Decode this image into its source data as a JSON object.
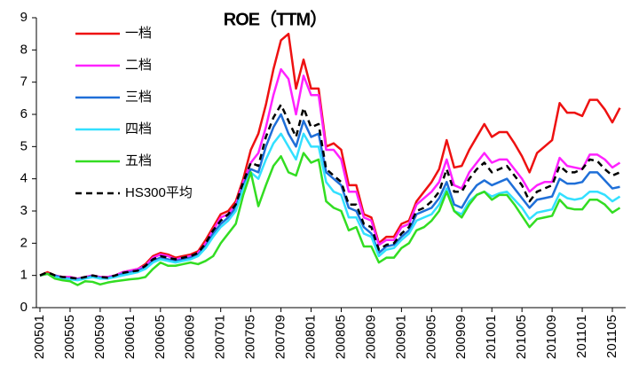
{
  "chart_data": {
    "type": "line",
    "title": "ROE（TTM）",
    "categories": [
      "200501",
      null,
      null,
      null,
      "200505",
      null,
      null,
      null,
      "200509",
      null,
      null,
      null,
      "200601",
      null,
      null,
      null,
      "200605",
      null,
      null,
      null,
      "200609",
      null,
      null,
      null,
      "200701",
      null,
      null,
      null,
      "200705",
      null,
      null,
      null,
      "200709",
      null,
      null,
      null,
      "200801",
      null,
      null,
      null,
      "200805",
      null,
      null,
      null,
      "200809",
      null,
      null,
      null,
      "200901",
      null,
      null,
      null,
      "200905",
      null,
      null,
      null,
      "200909",
      null,
      null,
      null,
      "201001",
      null,
      null,
      null,
      "201005",
      null,
      null,
      null,
      "201009",
      null,
      null,
      null,
      "201101",
      null,
      null,
      null,
      "201105",
      null
    ],
    "ylim": [
      0,
      9
    ],
    "yticks": [
      0,
      1,
      2,
      3,
      4,
      5,
      6,
      7,
      8,
      9
    ],
    "series": [
      {
        "name": "一档",
        "color": "#ee1111",
        "values": [
          1.0,
          1.1,
          1.0,
          0.95,
          0.95,
          0.9,
          0.95,
          1.0,
          0.95,
          0.95,
          1.0,
          1.1,
          1.15,
          1.2,
          1.35,
          1.6,
          1.7,
          1.65,
          1.55,
          1.6,
          1.65,
          1.75,
          2.1,
          2.5,
          2.9,
          3.0,
          3.3,
          4.0,
          4.9,
          5.4,
          6.3,
          7.4,
          8.3,
          8.5,
          6.8,
          7.7,
          6.8,
          6.8,
          5.0,
          5.1,
          4.9,
          3.8,
          3.8,
          2.9,
          2.8,
          2.0,
          2.2,
          2.2,
          2.6,
          2.7,
          3.3,
          3.6,
          3.9,
          4.3,
          5.2,
          4.35,
          4.4,
          4.9,
          5.3,
          5.7,
          5.3,
          5.45,
          5.45,
          5.1,
          4.7,
          4.2,
          4.8,
          5.0,
          5.2,
          6.35,
          6.05,
          6.05,
          5.95,
          6.45,
          6.45,
          6.15,
          5.75,
          6.2
        ]
      },
      {
        "name": "二档",
        "color": "#ff22ff",
        "values": [
          1.0,
          1.05,
          1.0,
          0.95,
          0.95,
          0.9,
          0.95,
          1.0,
          0.95,
          0.95,
          1.0,
          1.1,
          1.15,
          1.2,
          1.3,
          1.55,
          1.65,
          1.6,
          1.5,
          1.55,
          1.6,
          1.7,
          2.0,
          2.4,
          2.8,
          2.9,
          3.2,
          3.9,
          4.5,
          4.8,
          5.6,
          6.6,
          7.4,
          7.1,
          6.0,
          7.2,
          6.6,
          6.6,
          4.9,
          4.9,
          4.6,
          3.6,
          3.6,
          2.8,
          2.7,
          1.95,
          2.1,
          2.1,
          2.5,
          2.6,
          3.2,
          3.4,
          3.6,
          3.9,
          4.6,
          3.8,
          3.7,
          4.2,
          4.5,
          4.8,
          4.5,
          4.6,
          4.6,
          4.3,
          4.0,
          3.6,
          3.8,
          3.9,
          3.9,
          4.65,
          4.4,
          4.35,
          4.3,
          4.75,
          4.75,
          4.6,
          4.35,
          4.5
        ]
      },
      {
        "name": "三档",
        "color": "#1f6fd8",
        "values": [
          1.0,
          1.05,
          1.0,
          0.92,
          0.9,
          0.88,
          0.92,
          0.98,
          0.93,
          0.92,
          0.98,
          1.05,
          1.1,
          1.15,
          1.25,
          1.45,
          1.55,
          1.5,
          1.45,
          1.5,
          1.55,
          1.65,
          1.9,
          2.3,
          2.6,
          2.8,
          3.1,
          3.8,
          4.3,
          4.2,
          5.0,
          5.6,
          6.0,
          5.4,
          5.0,
          5.8,
          5.3,
          5.4,
          4.2,
          4.0,
          3.8,
          3.1,
          3.0,
          2.5,
          2.3,
          1.7,
          1.9,
          1.95,
          2.2,
          2.4,
          2.9,
          3.0,
          3.1,
          3.4,
          3.9,
          3.2,
          3.1,
          3.5,
          3.8,
          3.95,
          3.8,
          3.9,
          4.0,
          3.7,
          3.4,
          3.1,
          3.35,
          3.4,
          3.45,
          4.0,
          3.85,
          3.85,
          3.9,
          4.2,
          4.2,
          3.95,
          3.7,
          3.75
        ]
      },
      {
        "name": "四档",
        "color": "#33e0ff",
        "values": [
          1.0,
          1.05,
          0.95,
          0.9,
          0.88,
          0.85,
          0.9,
          0.95,
          0.9,
          0.9,
          0.95,
          1.0,
          1.05,
          1.1,
          1.2,
          1.4,
          1.5,
          1.45,
          1.4,
          1.45,
          1.5,
          1.6,
          1.85,
          2.2,
          2.5,
          2.7,
          3.0,
          3.7,
          4.2,
          4.0,
          4.6,
          5.1,
          5.4,
          5.0,
          4.6,
          5.4,
          5.0,
          5.0,
          3.9,
          3.6,
          3.5,
          2.8,
          2.8,
          2.3,
          2.2,
          1.6,
          1.8,
          1.85,
          2.1,
          2.3,
          2.7,
          2.8,
          2.9,
          3.2,
          3.7,
          3.0,
          2.9,
          3.3,
          3.5,
          3.6,
          3.45,
          3.55,
          3.6,
          3.35,
          3.1,
          2.75,
          2.95,
          3.0,
          3.05,
          3.55,
          3.4,
          3.35,
          3.4,
          3.6,
          3.6,
          3.5,
          3.3,
          3.45
        ]
      },
      {
        "name": "五档",
        "color": "#33dd22",
        "values": [
          1.0,
          1.05,
          0.9,
          0.85,
          0.82,
          0.7,
          0.82,
          0.8,
          0.72,
          0.78,
          0.82,
          0.85,
          0.88,
          0.9,
          0.95,
          1.2,
          1.4,
          1.3,
          1.3,
          1.35,
          1.4,
          1.35,
          1.45,
          1.6,
          2.0,
          2.3,
          2.6,
          3.5,
          4.2,
          3.15,
          3.8,
          4.4,
          4.7,
          4.2,
          4.1,
          4.8,
          4.5,
          4.6,
          3.3,
          3.1,
          3.0,
          2.4,
          2.5,
          1.9,
          1.9,
          1.4,
          1.55,
          1.55,
          1.85,
          2.0,
          2.4,
          2.5,
          2.7,
          3.0,
          3.6,
          3.0,
          2.8,
          3.2,
          3.5,
          3.6,
          3.35,
          3.5,
          3.5,
          3.2,
          2.85,
          2.5,
          2.75,
          2.8,
          2.85,
          3.35,
          3.1,
          3.05,
          3.05,
          3.35,
          3.35,
          3.2,
          2.95,
          3.1
        ]
      },
      {
        "name": "HS300平均",
        "color": "#000000",
        "dash": true,
        "values": [
          1.0,
          1.1,
          1.0,
          0.95,
          0.93,
          0.9,
          0.95,
          1.0,
          0.95,
          0.93,
          1.0,
          1.08,
          1.12,
          1.15,
          1.3,
          1.5,
          1.6,
          1.55,
          1.5,
          1.55,
          1.6,
          1.7,
          2.0,
          2.4,
          2.7,
          2.9,
          3.2,
          3.9,
          4.5,
          4.4,
          5.3,
          5.9,
          6.3,
          5.8,
          5.3,
          6.2,
          5.6,
          5.7,
          4.3,
          4.1,
          3.9,
          3.2,
          3.2,
          2.6,
          2.5,
          1.8,
          1.95,
          2.0,
          2.3,
          2.5,
          3.0,
          3.1,
          3.3,
          3.6,
          4.3,
          3.6,
          3.6,
          4.0,
          4.3,
          4.5,
          4.2,
          4.3,
          4.4,
          4.1,
          3.8,
          3.3,
          3.6,
          3.7,
          3.8,
          4.4,
          4.2,
          4.2,
          4.3,
          4.6,
          4.55,
          4.3,
          4.1,
          4.2
        ]
      }
    ]
  }
}
